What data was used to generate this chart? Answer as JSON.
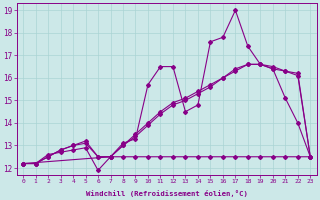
{
  "xlabel": "Windchill (Refroidissement éolien,°C)",
  "ylabel": "",
  "bg_color": "#cce8e8",
  "line_color": "#880088",
  "xlim": [
    -0.5,
    23.5
  ],
  "ylim": [
    11.7,
    19.3
  ],
  "xticks": [
    0,
    1,
    2,
    3,
    4,
    5,
    6,
    7,
    8,
    9,
    10,
    11,
    12,
    13,
    14,
    15,
    16,
    17,
    18,
    19,
    20,
    21,
    22,
    23
  ],
  "yticks": [
    12,
    13,
    14,
    15,
    16,
    17,
    18,
    19
  ],
  "series": [
    {
      "x": [
        0,
        1,
        2,
        3,
        4,
        5,
        6,
        7,
        8,
        9,
        10,
        11,
        12,
        13,
        14,
        15,
        16,
        17,
        18,
        19,
        20,
        21,
        22,
        23
      ],
      "y": [
        12.2,
        12.2,
        12.6,
        12.7,
        12.8,
        12.9,
        11.9,
        12.5,
        13.1,
        13.3,
        15.7,
        16.5,
        16.5,
        14.5,
        14.8,
        17.6,
        17.8,
        19.0,
        17.4,
        16.6,
        16.4,
        15.1,
        14.0,
        12.5
      ]
    },
    {
      "x": [
        0,
        1,
        2,
        3,
        4,
        5,
        6,
        7,
        8,
        9,
        10,
        11,
        12,
        13,
        14,
        15,
        16,
        17,
        18,
        19,
        20,
        21,
        22,
        23
      ],
      "y": [
        12.2,
        12.2,
        12.5,
        12.8,
        13.0,
        13.1,
        12.5,
        12.5,
        13.0,
        13.4,
        13.9,
        14.4,
        14.8,
        15.0,
        15.3,
        15.6,
        16.0,
        16.3,
        16.6,
        16.6,
        16.4,
        16.3,
        16.2,
        12.5
      ]
    },
    {
      "x": [
        0,
        1,
        2,
        3,
        4,
        5,
        6,
        7,
        8,
        9,
        10,
        11,
        12,
        13,
        14,
        15,
        16,
        17,
        18,
        19,
        20,
        21,
        22,
        23
      ],
      "y": [
        12.2,
        12.2,
        12.5,
        12.8,
        13.0,
        13.2,
        12.5,
        12.5,
        13.0,
        13.5,
        14.0,
        14.5,
        14.9,
        15.1,
        15.4,
        15.7,
        16.0,
        16.4,
        16.6,
        16.6,
        16.5,
        16.3,
        16.1,
        12.5
      ]
    },
    {
      "x": [
        0,
        7,
        8,
        9,
        10,
        11,
        12,
        13,
        14,
        15,
        16,
        17,
        18,
        19,
        20,
        21,
        22,
        23
      ],
      "y": [
        12.2,
        12.5,
        12.5,
        12.5,
        12.5,
        12.5,
        12.5,
        12.5,
        12.5,
        12.5,
        12.5,
        12.5,
        12.5,
        12.5,
        12.5,
        12.5,
        12.5,
        12.5
      ]
    }
  ]
}
